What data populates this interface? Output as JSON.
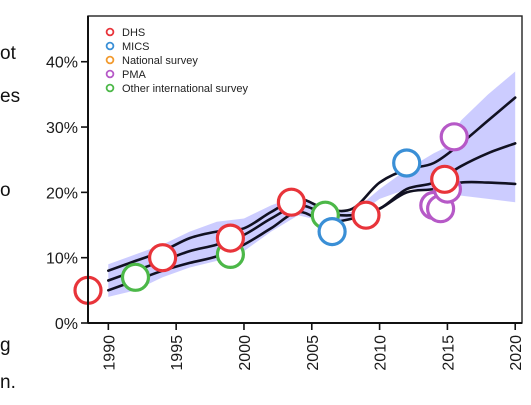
{
  "fragments": {
    "left_text": [
      "ot",
      "es",
      "o",
      "g",
      "n."
    ]
  },
  "chart_data": {
    "type": "scatter",
    "xlim": [
      1988.5,
      2020.5
    ],
    "ylim": [
      0,
      47
    ],
    "xticks": [
      1990,
      1995,
      2000,
      2005,
      2010,
      2015,
      2020
    ],
    "xtick_labels": [
      "1990",
      "1995",
      "2000",
      "2005",
      "2010",
      "2015",
      "2020"
    ],
    "yticks": [
      0,
      10,
      20,
      30,
      40
    ],
    "ytick_labels": [
      "0%",
      "10%",
      "20%",
      "30%",
      "40%"
    ],
    "grid": false,
    "legend": {
      "position": "top-left",
      "entries": [
        {
          "label": "DHS",
          "color": "#e8343a"
        },
        {
          "label": "MICS",
          "color": "#3a8fd6"
        },
        {
          "label": "National survey",
          "color": "#f29a2e"
        },
        {
          "label": "PMA",
          "color": "#b659c7"
        },
        {
          "label": "Other international survey",
          "color": "#4cb848"
        }
      ]
    },
    "uncertainty_band": {
      "color": "#c7c6ff",
      "x": [
        1990,
        1992,
        1994,
        1996,
        1998,
        2000,
        2002,
        2004,
        2005,
        2006,
        2008,
        2010,
        2012,
        2014,
        2015,
        2016,
        2018,
        2020
      ],
      "lower": [
        4,
        5,
        7,
        8.5,
        9.5,
        11,
        14,
        16.5,
        16,
        15.5,
        16,
        19,
        20.5,
        20.5,
        20,
        19.5,
        19,
        18.5
      ],
      "upper": [
        9,
        10.5,
        12,
        14,
        15.5,
        16,
        18,
        19.5,
        18.5,
        17,
        17,
        20.5,
        23.5,
        26,
        27,
        31,
        35,
        38.5
      ]
    },
    "lines": {
      "color": "#111122",
      "median": {
        "x": [
          1990,
          1992,
          1994,
          1996,
          1998,
          2000,
          2002,
          2004,
          2006,
          2008,
          2010,
          2012,
          2014,
          2016,
          2018,
          2020
        ],
        "y": [
          6.5,
          8,
          9.5,
          11,
          12,
          13.5,
          16,
          18,
          16.8,
          16.5,
          17.5,
          20.5,
          21.5,
          24,
          26,
          27.5
        ]
      },
      "upper": {
        "x": [
          1990,
          1992,
          1994,
          1996,
          1998,
          2000,
          2002,
          2004,
          2006,
          2008,
          2010,
          2012,
          2014,
          2016,
          2018,
          2020
        ],
        "y": [
          8,
          9.5,
          11,
          13,
          14,
          14.5,
          17,
          19,
          17.5,
          17.5,
          21.5,
          23.5,
          24.5,
          27.5,
          31,
          34.5
        ]
      },
      "lower": {
        "x": [
          1990,
          1992,
          1994,
          1996,
          1998,
          2000,
          2002,
          2004,
          2006,
          2008,
          2010,
          2012,
          2014,
          2016,
          2018,
          2020
        ],
        "y": [
          5,
          6.5,
          8,
          9.2,
          10.2,
          12,
          14.5,
          17,
          15.5,
          16,
          17.5,
          20,
          20.5,
          21.5,
          21.5,
          21.3
        ]
      }
    },
    "points": [
      {
        "survey": "DHS",
        "x": 1988.5,
        "y": 5
      },
      {
        "survey": "Other international survey",
        "x": 1992,
        "y": 7
      },
      {
        "survey": "DHS",
        "x": 1994,
        "y": 10
      },
      {
        "survey": "Other international survey",
        "x": 1999,
        "y": 10.5
      },
      {
        "survey": "DHS",
        "x": 1999,
        "y": 13
      },
      {
        "survey": "DHS",
        "x": 2003.5,
        "y": 18.5
      },
      {
        "survey": "Other international survey",
        "x": 2006,
        "y": 16.5
      },
      {
        "survey": "MICS",
        "x": 2006.5,
        "y": 14
      },
      {
        "survey": "DHS",
        "x": 2009,
        "y": 16.5
      },
      {
        "survey": "MICS",
        "x": 2012,
        "y": 24.5
      },
      {
        "survey": "PMA",
        "x": 2014,
        "y": 18
      },
      {
        "survey": "PMA",
        "x": 2014.5,
        "y": 17.5
      },
      {
        "survey": "PMA",
        "x": 2015,
        "y": 20.5
      },
      {
        "survey": "DHS",
        "x": 2014.8,
        "y": 22
      },
      {
        "survey": "PMA",
        "x": 2015.5,
        "y": 28.5
      }
    ]
  }
}
